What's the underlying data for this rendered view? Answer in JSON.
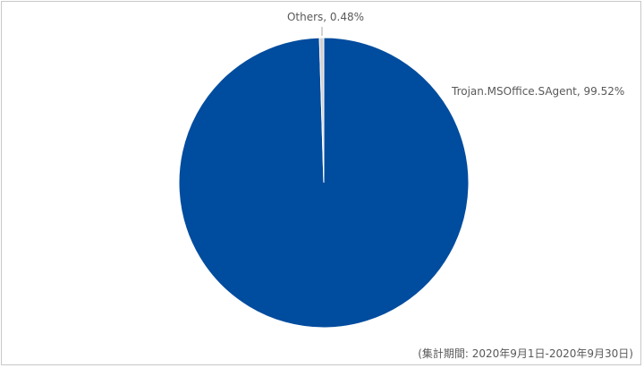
{
  "chart_data": {
    "type": "pie",
    "slices": [
      {
        "label": "Trojan.MSOffice.SAgent",
        "value": 99.52,
        "label_text": "Trojan.MSOffice.SAgent, 99.52%",
        "color": "#004c9e"
      },
      {
        "label": "Others",
        "value": 0.48,
        "label_text": "Others, 0.48%",
        "color": "#d0d0d0"
      }
    ],
    "start_angle_deg": 0,
    "direction": "clockwise"
  },
  "footnote": "(集計期間: 2020年9月1日-2020年9月30日)"
}
